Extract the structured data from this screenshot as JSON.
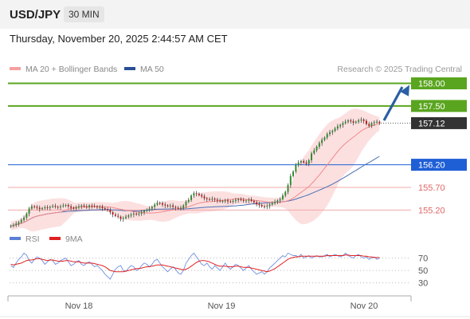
{
  "header": {
    "symbol": "USD/JPY",
    "timeframe": "30 MIN",
    "datetime": "Thursday, November 20, 2025 2:44:57 AM CET"
  },
  "chart_data": {
    "type": "candlestick",
    "legend": [
      {
        "name": "MA 20 + Bollinger Bands",
        "color": "#f4a0a0"
      },
      {
        "name": "MA 50",
        "color": "#2b4f95"
      }
    ],
    "credit": "Research © 2025 Trading Central",
    "x_ticks": [
      "Nov 18",
      "Nov 19",
      "Nov 20"
    ],
    "price_range": [
      154.8,
      158.15
    ],
    "levels": [
      {
        "value": 158.0,
        "label": "158.00",
        "style": "green-tag",
        "color": "#5aa51f"
      },
      {
        "value": 157.5,
        "label": "157.50",
        "style": "green-tag",
        "color": "#5aa51f"
      },
      {
        "value": 157.12,
        "label": "157.12",
        "style": "dark-tag",
        "color": "#333333"
      },
      {
        "value": 156.2,
        "label": "156.20",
        "style": "blue-tag",
        "color": "#1f5fd6"
      },
      {
        "value": 155.7,
        "label": "155.70",
        "style": "red-text",
        "color": "#e26666"
      },
      {
        "value": 155.2,
        "label": "155.20",
        "style": "red-text",
        "color": "#e26666"
      }
    ],
    "close_series": [
      154.85,
      154.87,
      154.9,
      154.93,
      154.98,
      155.03,
      155.12,
      155.23,
      155.28,
      155.27,
      155.25,
      155.22,
      155.24,
      155.26,
      155.25,
      155.27,
      155.29,
      155.27,
      155.26,
      155.28,
      155.3,
      155.31,
      155.28,
      155.25,
      155.23,
      155.26,
      155.28,
      155.3,
      155.28,
      155.26,
      155.3,
      155.29,
      155.28,
      155.26,
      155.27,
      155.24,
      155.22,
      155.2,
      155.15,
      155.1,
      155.07,
      155.05,
      155.0,
      155.02,
      155.05,
      155.08,
      155.1,
      155.12,
      155.1,
      155.12,
      155.15,
      155.18,
      155.2,
      155.23,
      155.27,
      155.32,
      155.36,
      155.35,
      155.32,
      155.3,
      155.28,
      155.3,
      155.27,
      155.25,
      155.23,
      155.25,
      155.3,
      155.38,
      155.42,
      155.52,
      155.57,
      155.56,
      155.53,
      155.5,
      155.46,
      155.44,
      155.43,
      155.45,
      155.43,
      155.41,
      155.39,
      155.4,
      155.41,
      155.39,
      155.38,
      155.4,
      155.42,
      155.44,
      155.42,
      155.4,
      155.41,
      155.43,
      155.4,
      155.37,
      155.33,
      155.31,
      155.28,
      155.27,
      155.29,
      155.32,
      155.35,
      155.38,
      155.41,
      155.44,
      155.52,
      155.6,
      155.75,
      155.95,
      156.05,
      156.2,
      156.25,
      156.28,
      156.25,
      156.22,
      156.3,
      156.45,
      156.52,
      156.6,
      156.68,
      156.75,
      156.8,
      156.88,
      156.92,
      156.95,
      157.0,
      157.05,
      157.08,
      157.12,
      157.15,
      157.18,
      157.16,
      157.13,
      157.15,
      157.18,
      157.2,
      157.17,
      157.1,
      157.06,
      157.12,
      157.14,
      157.15,
      157.12
    ],
    "rsi": {
      "legend": [
        {
          "name": "RSI",
          "color": "#5a7fd6"
        },
        {
          "name": "9MA",
          "color": "#e02020"
        }
      ],
      "ticks": [
        70,
        50,
        30
      ],
      "range": [
        18,
        85
      ],
      "values": [
        58,
        55,
        62,
        68,
        72,
        78,
        75,
        66,
        62,
        68,
        72,
        70,
        66,
        60,
        64,
        68,
        66,
        60,
        62,
        66,
        68,
        70,
        64,
        58,
        60,
        64,
        66,
        60,
        58,
        62,
        64,
        60,
        56,
        58,
        54,
        50,
        44,
        40,
        36,
        44,
        52,
        56,
        58,
        50,
        48,
        54,
        58,
        56,
        50,
        52,
        58,
        62,
        60,
        56,
        60,
        66,
        68,
        62,
        56,
        52,
        48,
        52,
        56,
        52,
        46,
        44,
        50,
        62,
        68,
        74,
        78,
        72,
        66,
        60,
        58,
        62,
        56,
        52,
        58,
        54,
        50,
        56,
        62,
        56,
        52,
        56,
        60,
        58,
        54,
        50,
        54,
        58,
        52,
        48,
        44,
        46,
        48,
        44,
        48,
        54,
        58,
        62,
        66,
        70,
        74,
        72,
        78,
        76,
        74,
        74,
        72,
        76,
        70,
        72,
        74,
        70,
        72,
        74,
        72,
        72,
        74,
        76,
        72,
        74,
        76,
        74,
        72,
        74,
        78,
        74,
        72,
        70,
        74,
        76,
        72,
        70,
        72,
        68,
        70,
        72,
        68,
        70
      ],
      "ma9": [
        60,
        59,
        60,
        61,
        62,
        64,
        66,
        67,
        67,
        68,
        69,
        69,
        68,
        67,
        66,
        67,
        67,
        66,
        65,
        65,
        65,
        66,
        66,
        65,
        64,
        64,
        64,
        63,
        62,
        62,
        62,
        62,
        61,
        60,
        59,
        58,
        56,
        53,
        50,
        49,
        48,
        48,
        48,
        48,
        49,
        50,
        51,
        52,
        53,
        53,
        54,
        55,
        56,
        56,
        57,
        58,
        59,
        59,
        59,
        58,
        57,
        56,
        55,
        54,
        53,
        52,
        51,
        52,
        54,
        57,
        60,
        63,
        65,
        66,
        66,
        65,
        64,
        62,
        60,
        58,
        57,
        57,
        57,
        56,
        56,
        56,
        57,
        57,
        56,
        55,
        55,
        55,
        54,
        53,
        52,
        51,
        50,
        49,
        48,
        49,
        51,
        53,
        56,
        59,
        62,
        65,
        68,
        70,
        71,
        72,
        72,
        73,
        73,
        73,
        73,
        73,
        73,
        73,
        73,
        73,
        73,
        74,
        74,
        74,
        74,
        74,
        74,
        74,
        75,
        75,
        74,
        74,
        74,
        74,
        74,
        73,
        73,
        72,
        72,
        71,
        71,
        71
      ]
    }
  }
}
